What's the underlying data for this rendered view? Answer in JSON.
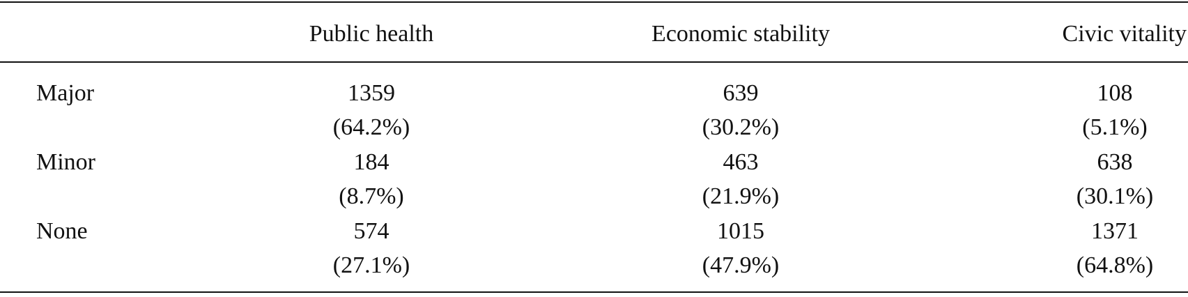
{
  "table": {
    "columns": [
      "Public health",
      "Economic stability",
      "Civic vitality"
    ],
    "rows": [
      {
        "label": "Major",
        "cells": [
          {
            "count": 1359,
            "percent": "(64.2%)"
          },
          {
            "count": 639,
            "percent": "(30.2%)"
          },
          {
            "count": 108,
            "percent": "(5.1%)"
          }
        ]
      },
      {
        "label": "Minor",
        "cells": [
          {
            "count": 184,
            "percent": "(8.7%)"
          },
          {
            "count": 463,
            "percent": "(21.9%)"
          },
          {
            "count": 638,
            "percent": "(30.1%)"
          }
        ]
      },
      {
        "label": "None",
        "cells": [
          {
            "count": 574,
            "percent": "(27.1%)"
          },
          {
            "count": 1015,
            "percent": "(47.9%)"
          },
          {
            "count": 1371,
            "percent": "(64.8%)"
          }
        ]
      }
    ]
  }
}
